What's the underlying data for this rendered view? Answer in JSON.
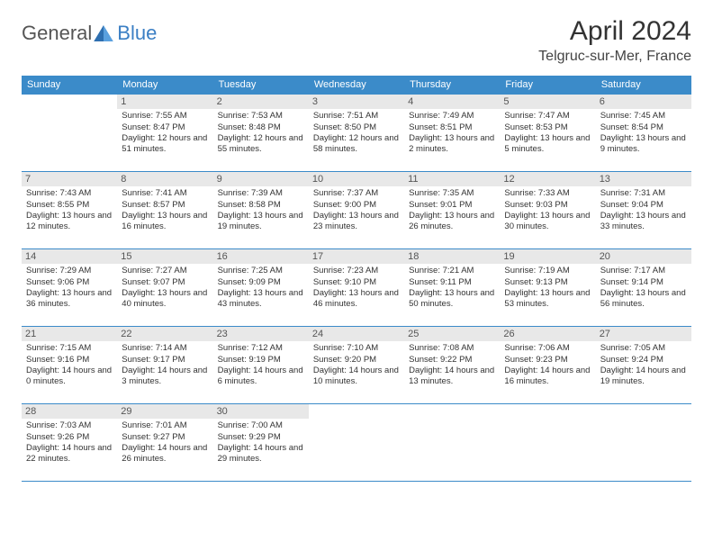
{
  "logo": {
    "general": "General",
    "blue": "Blue"
  },
  "title": "April 2024",
  "location": "Telgruc-sur-Mer, France",
  "colors": {
    "header_bg": "#3b8bc9",
    "header_text": "#ffffff",
    "border": "#3b8bc9",
    "daynum_bg": "#e8e8e8",
    "text": "#333333",
    "logo_gray": "#555555",
    "logo_blue": "#3b7fc4"
  },
  "weekdays": [
    "Sunday",
    "Monday",
    "Tuesday",
    "Wednesday",
    "Thursday",
    "Friday",
    "Saturday"
  ],
  "weeks": [
    [
      null,
      {
        "n": "1",
        "sr": "7:55 AM",
        "ss": "8:47 PM",
        "dl": "12 hours and 51 minutes."
      },
      {
        "n": "2",
        "sr": "7:53 AM",
        "ss": "8:48 PM",
        "dl": "12 hours and 55 minutes."
      },
      {
        "n": "3",
        "sr": "7:51 AM",
        "ss": "8:50 PM",
        "dl": "12 hours and 58 minutes."
      },
      {
        "n": "4",
        "sr": "7:49 AM",
        "ss": "8:51 PM",
        "dl": "13 hours and 2 minutes."
      },
      {
        "n": "5",
        "sr": "7:47 AM",
        "ss": "8:53 PM",
        "dl": "13 hours and 5 minutes."
      },
      {
        "n": "6",
        "sr": "7:45 AM",
        "ss": "8:54 PM",
        "dl": "13 hours and 9 minutes."
      }
    ],
    [
      {
        "n": "7",
        "sr": "7:43 AM",
        "ss": "8:55 PM",
        "dl": "13 hours and 12 minutes."
      },
      {
        "n": "8",
        "sr": "7:41 AM",
        "ss": "8:57 PM",
        "dl": "13 hours and 16 minutes."
      },
      {
        "n": "9",
        "sr": "7:39 AM",
        "ss": "8:58 PM",
        "dl": "13 hours and 19 minutes."
      },
      {
        "n": "10",
        "sr": "7:37 AM",
        "ss": "9:00 PM",
        "dl": "13 hours and 23 minutes."
      },
      {
        "n": "11",
        "sr": "7:35 AM",
        "ss": "9:01 PM",
        "dl": "13 hours and 26 minutes."
      },
      {
        "n": "12",
        "sr": "7:33 AM",
        "ss": "9:03 PM",
        "dl": "13 hours and 30 minutes."
      },
      {
        "n": "13",
        "sr": "7:31 AM",
        "ss": "9:04 PM",
        "dl": "13 hours and 33 minutes."
      }
    ],
    [
      {
        "n": "14",
        "sr": "7:29 AM",
        "ss": "9:06 PM",
        "dl": "13 hours and 36 minutes."
      },
      {
        "n": "15",
        "sr": "7:27 AM",
        "ss": "9:07 PM",
        "dl": "13 hours and 40 minutes."
      },
      {
        "n": "16",
        "sr": "7:25 AM",
        "ss": "9:09 PM",
        "dl": "13 hours and 43 minutes."
      },
      {
        "n": "17",
        "sr": "7:23 AM",
        "ss": "9:10 PM",
        "dl": "13 hours and 46 minutes."
      },
      {
        "n": "18",
        "sr": "7:21 AM",
        "ss": "9:11 PM",
        "dl": "13 hours and 50 minutes."
      },
      {
        "n": "19",
        "sr": "7:19 AM",
        "ss": "9:13 PM",
        "dl": "13 hours and 53 minutes."
      },
      {
        "n": "20",
        "sr": "7:17 AM",
        "ss": "9:14 PM",
        "dl": "13 hours and 56 minutes."
      }
    ],
    [
      {
        "n": "21",
        "sr": "7:15 AM",
        "ss": "9:16 PM",
        "dl": "14 hours and 0 minutes."
      },
      {
        "n": "22",
        "sr": "7:14 AM",
        "ss": "9:17 PM",
        "dl": "14 hours and 3 minutes."
      },
      {
        "n": "23",
        "sr": "7:12 AM",
        "ss": "9:19 PM",
        "dl": "14 hours and 6 minutes."
      },
      {
        "n": "24",
        "sr": "7:10 AM",
        "ss": "9:20 PM",
        "dl": "14 hours and 10 minutes."
      },
      {
        "n": "25",
        "sr": "7:08 AM",
        "ss": "9:22 PM",
        "dl": "14 hours and 13 minutes."
      },
      {
        "n": "26",
        "sr": "7:06 AM",
        "ss": "9:23 PM",
        "dl": "14 hours and 16 minutes."
      },
      {
        "n": "27",
        "sr": "7:05 AM",
        "ss": "9:24 PM",
        "dl": "14 hours and 19 minutes."
      }
    ],
    [
      {
        "n": "28",
        "sr": "7:03 AM",
        "ss": "9:26 PM",
        "dl": "14 hours and 22 minutes."
      },
      {
        "n": "29",
        "sr": "7:01 AM",
        "ss": "9:27 PM",
        "dl": "14 hours and 26 minutes."
      },
      {
        "n": "30",
        "sr": "7:00 AM",
        "ss": "9:29 PM",
        "dl": "14 hours and 29 minutes."
      },
      null,
      null,
      null,
      null
    ]
  ],
  "labels": {
    "sunrise": "Sunrise:",
    "sunset": "Sunset:",
    "daylight": "Daylight:"
  }
}
